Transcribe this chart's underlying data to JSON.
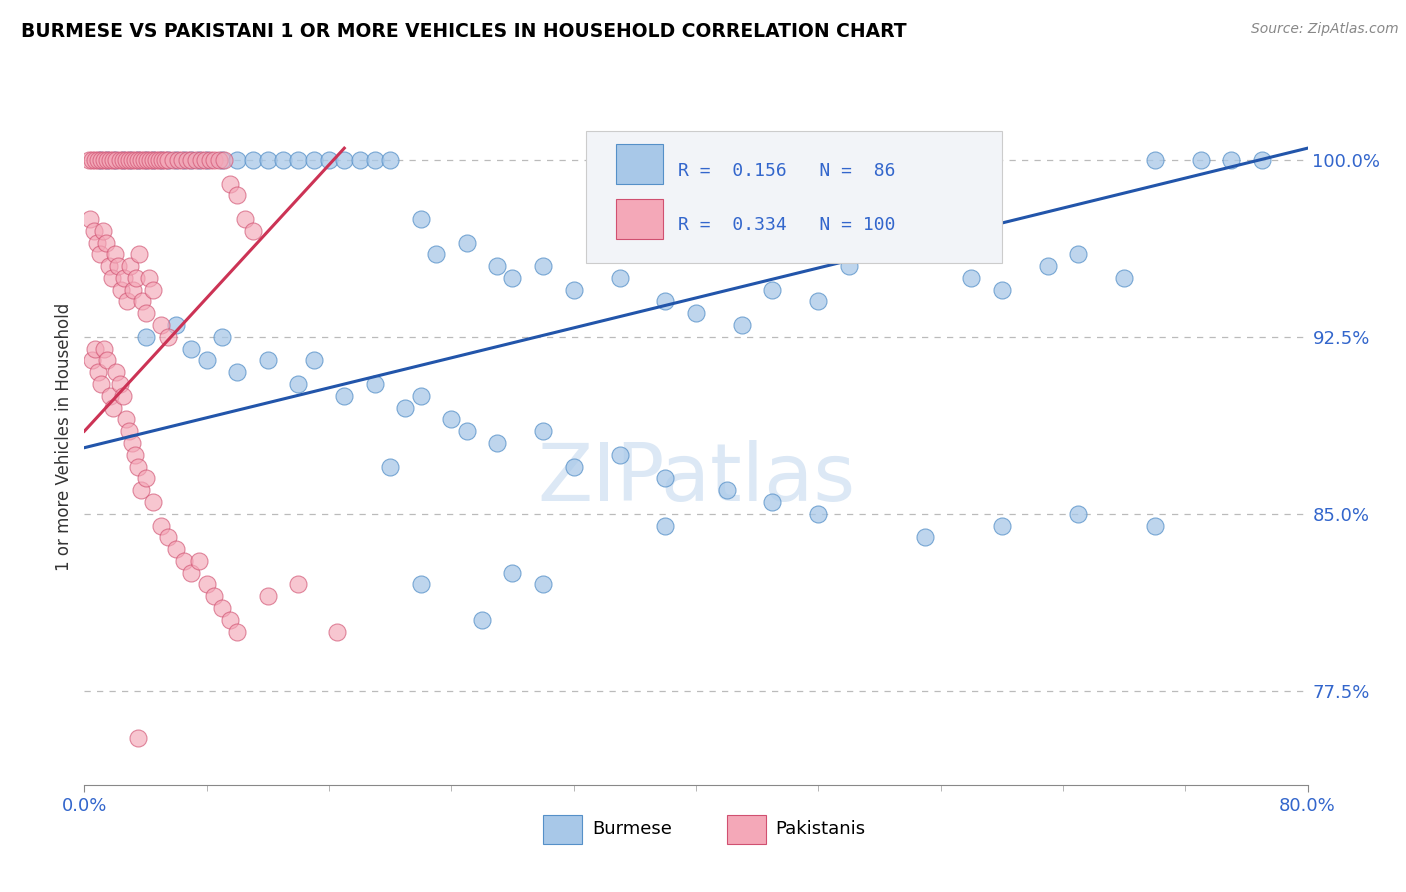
{
  "title": "BURMESE VS PAKISTANI 1 OR MORE VEHICLES IN HOUSEHOLD CORRELATION CHART",
  "source_text": "Source: ZipAtlas.com",
  "ylabel": "1 or more Vehicles in Household",
  "xlim": [
    0.0,
    80.0
  ],
  "ylim": [
    73.5,
    103.0
  ],
  "ytick_values": [
    77.5,
    85.0,
    92.5,
    100.0
  ],
  "ytick_labels": [
    "77.5%",
    "85.0%",
    "92.5%",
    "100.0%"
  ],
  "legend_blue": {
    "R": "0.156",
    "N": "86"
  },
  "legend_pink": {
    "R": "0.334",
    "N": "100"
  },
  "blue_face": "#a8c8e8",
  "blue_edge": "#5590c8",
  "pink_face": "#f4a8b8",
  "pink_edge": "#d05070",
  "blue_line_color": "#2255aa",
  "pink_line_color": "#cc3355",
  "dashed_line_color": "#bbbbbb",
  "watermark_text": "ZIPatlas",
  "watermark_color": "#dce8f5",
  "blue_trend_x": [
    0.0,
    80.0
  ],
  "blue_trend_y": [
    87.8,
    100.5
  ],
  "pink_trend_x": [
    0.0,
    17.0
  ],
  "pink_trend_y": [
    88.5,
    100.5
  ],
  "blue_x": [
    1.0,
    1.5,
    2.0,
    2.5,
    3.0,
    3.5,
    4.0,
    4.5,
    5.0,
    5.5,
    6.0,
    6.5,
    7.0,
    7.5,
    8.0,
    9.0,
    10.0,
    11.0,
    12.0,
    13.0,
    14.0,
    15.0,
    16.0,
    17.0,
    18.0,
    19.0,
    20.0,
    22.0,
    23.0,
    25.0,
    27.0,
    28.0,
    30.0,
    32.0,
    35.0,
    38.0,
    40.0,
    43.0,
    45.0,
    48.0,
    50.0,
    52.0,
    55.0,
    58.0,
    60.0,
    63.0,
    65.0,
    68.0,
    70.0,
    73.0,
    75.0,
    77.0,
    4.0,
    6.0,
    7.0,
    8.0,
    9.0,
    10.0,
    12.0,
    14.0,
    15.0,
    17.0,
    19.0,
    21.0,
    22.0,
    24.0,
    25.0,
    27.0,
    30.0,
    32.0,
    35.0,
    38.0,
    42.0,
    45.0,
    48.0,
    55.0,
    60.0,
    65.0,
    70.0,
    20.0,
    22.0,
    26.0,
    28.0,
    30.0,
    38.0
  ],
  "blue_y": [
    100.0,
    100.0,
    100.0,
    100.0,
    100.0,
    100.0,
    100.0,
    100.0,
    100.0,
    100.0,
    100.0,
    100.0,
    100.0,
    100.0,
    100.0,
    100.0,
    100.0,
    100.0,
    100.0,
    100.0,
    100.0,
    100.0,
    100.0,
    100.0,
    100.0,
    100.0,
    100.0,
    97.5,
    96.0,
    96.5,
    95.5,
    95.0,
    95.5,
    94.5,
    95.0,
    94.0,
    93.5,
    93.0,
    94.5,
    94.0,
    95.5,
    96.5,
    96.0,
    95.0,
    94.5,
    95.5,
    96.0,
    95.0,
    100.0,
    100.0,
    100.0,
    100.0,
    92.5,
    93.0,
    92.0,
    91.5,
    92.5,
    91.0,
    91.5,
    90.5,
    91.5,
    90.0,
    90.5,
    89.5,
    90.0,
    89.0,
    88.5,
    88.0,
    88.5,
    87.0,
    87.5,
    86.5,
    86.0,
    85.5,
    85.0,
    84.0,
    84.5,
    85.0,
    84.5,
    87.0,
    82.0,
    80.5,
    82.5,
    82.0,
    84.5
  ],
  "pink_x": [
    0.3,
    0.5,
    0.7,
    0.9,
    1.1,
    1.3,
    1.5,
    1.7,
    1.9,
    2.1,
    2.3,
    2.5,
    2.7,
    2.9,
    3.1,
    3.3,
    3.5,
    3.7,
    3.9,
    4.1,
    4.3,
    4.5,
    4.7,
    4.9,
    5.1,
    5.3,
    5.5,
    5.8,
    6.1,
    6.4,
    6.7,
    7.0,
    7.3,
    7.6,
    7.9,
    8.2,
    8.5,
    8.8,
    9.1,
    9.5,
    10.0,
    10.5,
    11.0,
    0.4,
    0.6,
    0.8,
    1.0,
    1.2,
    1.4,
    1.6,
    1.8,
    2.0,
    2.2,
    2.4,
    2.6,
    2.8,
    3.0,
    3.2,
    3.4,
    3.6,
    3.8,
    4.0,
    4.2,
    4.5,
    5.0,
    5.5,
    0.5,
    0.7,
    0.9,
    1.1,
    1.3,
    1.5,
    1.7,
    1.9,
    2.1,
    2.3,
    2.5,
    2.7,
    2.9,
    3.1,
    3.3,
    3.5,
    3.7,
    4.0,
    4.5,
    5.0,
    5.5,
    6.0,
    6.5,
    7.0,
    7.5,
    8.0,
    8.5,
    9.0,
    9.5,
    10.0,
    12.0,
    14.0,
    16.5,
    3.5
  ],
  "pink_y": [
    100.0,
    100.0,
    100.0,
    100.0,
    100.0,
    100.0,
    100.0,
    100.0,
    100.0,
    100.0,
    100.0,
    100.0,
    100.0,
    100.0,
    100.0,
    100.0,
    100.0,
    100.0,
    100.0,
    100.0,
    100.0,
    100.0,
    100.0,
    100.0,
    100.0,
    100.0,
    100.0,
    100.0,
    100.0,
    100.0,
    100.0,
    100.0,
    100.0,
    100.0,
    100.0,
    100.0,
    100.0,
    100.0,
    100.0,
    99.0,
    98.5,
    97.5,
    97.0,
    97.5,
    97.0,
    96.5,
    96.0,
    97.0,
    96.5,
    95.5,
    95.0,
    96.0,
    95.5,
    94.5,
    95.0,
    94.0,
    95.5,
    94.5,
    95.0,
    96.0,
    94.0,
    93.5,
    95.0,
    94.5,
    93.0,
    92.5,
    91.5,
    92.0,
    91.0,
    90.5,
    92.0,
    91.5,
    90.0,
    89.5,
    91.0,
    90.5,
    90.0,
    89.0,
    88.5,
    88.0,
    87.5,
    87.0,
    86.0,
    86.5,
    85.5,
    84.5,
    84.0,
    83.5,
    83.0,
    82.5,
    83.0,
    82.0,
    81.5,
    81.0,
    80.5,
    80.0,
    81.5,
    82.0,
    80.0,
    75.5
  ]
}
